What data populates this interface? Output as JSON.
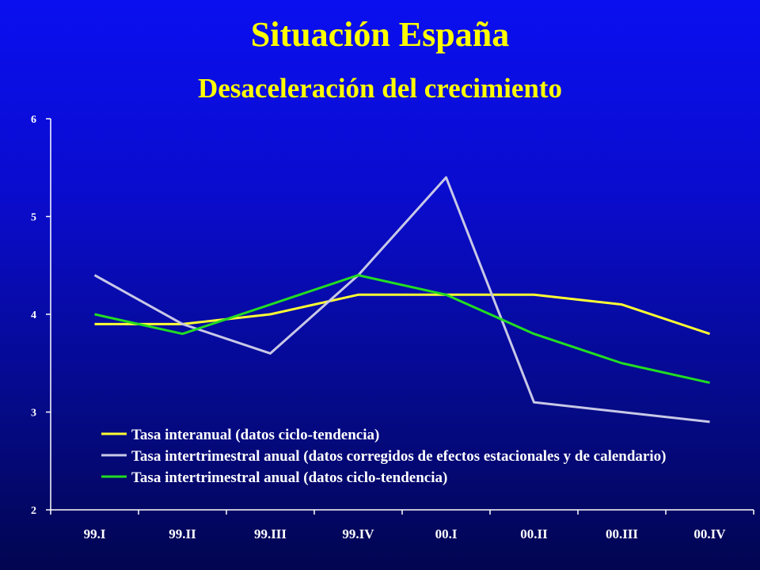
{
  "title": "Situación España",
  "subtitle": "Desaceleración del crecimiento",
  "chart_data": {
    "type": "line",
    "categories": [
      "99.I",
      "99.II",
      "99.III",
      "99.IV",
      "00.I",
      "00.II",
      "00.III",
      "00.IV"
    ],
    "ylim": [
      2,
      6
    ],
    "yticks": [
      "2",
      "3",
      "4",
      "5",
      "6"
    ],
    "grid": false,
    "legend_position": "bottom-center inside plot",
    "series": [
      {
        "name": "Tasa interanual (datos ciclo-tendencia)",
        "color": "#ffff33",
        "values": [
          3.9,
          3.9,
          4.0,
          4.2,
          4.2,
          4.2,
          4.1,
          3.8
        ]
      },
      {
        "name": "Tasa intertrimestral anual (datos corregidos de efectos estacionales y de calendario)",
        "color": "#c8c8e6",
        "values": [
          4.4,
          3.9,
          3.6,
          4.4,
          5.4,
          3.1,
          3.0,
          2.9
        ]
      },
      {
        "name": "Tasa intertrimestral anual (datos ciclo-tendencia)",
        "color": "#22dd22",
        "values": [
          4.0,
          3.8,
          4.1,
          4.4,
          4.2,
          3.8,
          3.5,
          3.3
        ]
      }
    ]
  }
}
